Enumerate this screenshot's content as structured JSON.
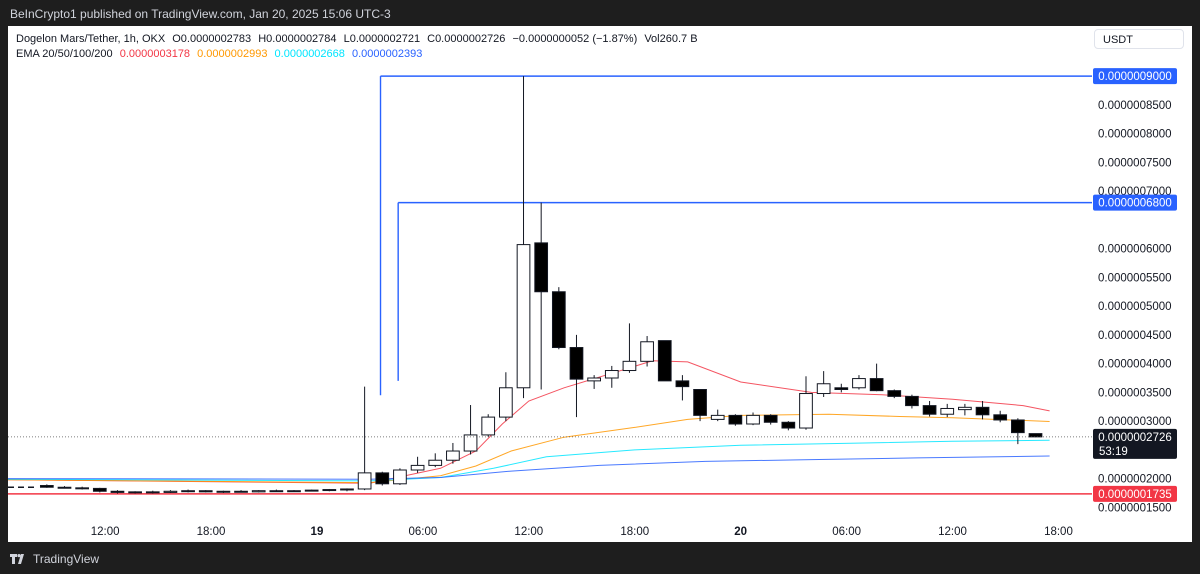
{
  "header": {
    "publisher_text": "BeInCrypto1 published on TradingView.com, Jan 20, 2025 15:06 UTC-3"
  },
  "legend": {
    "symbol": "Dogelon Mars/Tether, 1h, OKX",
    "open": "O0.0000002783",
    "high": "H0.0000002784",
    "low": "L0.0000002721",
    "close": "C0.0000002726",
    "change": "−0.0000000052 (−1.87%)",
    "volume": "Vol260.7 B",
    "ema_label": "EMA 20/50/100/200",
    "ema20": "0.0000003178",
    "ema50": "0.0000002993",
    "ema100": "0.0000002668",
    "ema200": "0.0000002393"
  },
  "currency_button": "USDT",
  "footer": {
    "brand": "TradingView"
  },
  "colors": {
    "ema20": "#f23645",
    "ema50": "#ff9800",
    "ema100": "#00e5ff",
    "ema200": "#2962ff",
    "resistance": "#2962ff",
    "support": "#f23645",
    "candle_down": "#000000",
    "candle_up": "#ffffff"
  },
  "chart_data": {
    "type": "candlestick",
    "y_axis_ticks": [
      "0.0000008500",
      "0.0000008000",
      "0.0000007500",
      "0.0000007000",
      "0.0000006000",
      "0.0000005500",
      "0.0000005000",
      "0.0000004500",
      "0.0000004000",
      "0.0000003500",
      "0.0000003000",
      "0.0000002000",
      "0.0000001500"
    ],
    "y_tick_values": [
      8.5e-07,
      8e-07,
      7.5e-07,
      7e-07,
      6e-07,
      5.5e-07,
      5e-07,
      4.5e-07,
      4e-07,
      3.5e-07,
      3e-07,
      2e-07,
      1.5e-07
    ],
    "x_axis_ticks": [
      {
        "label": "12:00",
        "hour": 12
      },
      {
        "label": "18:00",
        "hour": 18
      },
      {
        "label": "19",
        "hour": 24
      },
      {
        "label": "06:00",
        "hour": 30
      },
      {
        "label": "12:00",
        "hour": 36
      },
      {
        "label": "18:00",
        "hour": 42
      },
      {
        "label": "20",
        "hour": 48
      },
      {
        "label": "06:00",
        "hour": 54
      },
      {
        "label": "12:00",
        "hour": 60
      },
      {
        "label": "18:00",
        "hour": 66
      }
    ],
    "ylim": [
      1.35e-07,
      9.35e-07
    ],
    "xlim": [
      6.5,
      67.9
    ],
    "horizontal_levels": [
      {
        "label": "0.0000009000",
        "value": 9e-07,
        "color": "#2962ff",
        "start_hour": 27.6
      },
      {
        "label": "0.0000006800",
        "value": 6.8e-07,
        "color": "#2962ff",
        "start_hour": 28.6
      },
      {
        "label": "0.0000001735",
        "value": 1.735e-07,
        "color": "#f23645",
        "start_hour": 6.5
      }
    ],
    "last_price": {
      "label": "0.0000002726",
      "countdown": "53:19",
      "value": 2.726e-07
    },
    "candles": [
      {
        "t": 8.7,
        "o": 1.88e-07,
        "h": 1.9e-07,
        "l": 1.84e-07,
        "c": 1.85e-07
      },
      {
        "t": 9.7,
        "o": 1.85e-07,
        "h": 1.87e-07,
        "l": 1.83e-07,
        "c": 1.84e-07
      },
      {
        "t": 10.7,
        "o": 1.84e-07,
        "h": 1.86e-07,
        "l": 1.81e-07,
        "c": 1.83e-07
      },
      {
        "t": 11.7,
        "o": 1.83e-07,
        "h": 1.84e-07,
        "l": 1.76e-07,
        "c": 1.78e-07
      },
      {
        "t": 12.7,
        "o": 1.78e-07,
        "h": 1.8e-07,
        "l": 1.74e-07,
        "c": 1.76e-07
      },
      {
        "t": 13.7,
        "o": 1.76e-07,
        "h": 1.78e-07,
        "l": 1.74e-07,
        "c": 1.77e-07
      },
      {
        "t": 14.7,
        "o": 1.77e-07,
        "h": 1.79e-07,
        "l": 1.74e-07,
        "c": 1.76e-07
      },
      {
        "t": 15.7,
        "o": 1.76e-07,
        "h": 1.8e-07,
        "l": 1.75e-07,
        "c": 1.78e-07
      },
      {
        "t": 16.7,
        "o": 1.78e-07,
        "h": 1.81e-07,
        "l": 1.76e-07,
        "c": 1.79e-07
      },
      {
        "t": 17.7,
        "o": 1.79e-07,
        "h": 1.8e-07,
        "l": 1.76e-07,
        "c": 1.77e-07
      },
      {
        "t": 18.7,
        "o": 1.77e-07,
        "h": 1.79e-07,
        "l": 1.75e-07,
        "c": 1.78e-07
      },
      {
        "t": 19.7,
        "o": 1.78e-07,
        "h": 1.8e-07,
        "l": 1.76e-07,
        "c": 1.77e-07
      },
      {
        "t": 20.7,
        "o": 1.77e-07,
        "h": 1.8e-07,
        "l": 1.76e-07,
        "c": 1.79e-07
      },
      {
        "t": 21.7,
        "o": 1.79e-07,
        "h": 1.81e-07,
        "l": 1.77e-07,
        "c": 1.78e-07
      },
      {
        "t": 22.7,
        "o": 1.78e-07,
        "h": 1.8e-07,
        "l": 1.77e-07,
        "c": 1.79e-07
      },
      {
        "t": 23.7,
        "o": 1.79e-07,
        "h": 1.81e-07,
        "l": 1.78e-07,
        "c": 1.8e-07
      },
      {
        "t": 24.7,
        "o": 1.8e-07,
        "h": 1.82e-07,
        "l": 1.78e-07,
        "c": 1.81e-07
      },
      {
        "t": 25.7,
        "o": 1.81e-07,
        "h": 1.83e-07,
        "l": 1.78e-07,
        "c": 1.82e-07
      },
      {
        "t": 26.7,
        "o": 1.82e-07,
        "h": 3.6e-07,
        "l": 1.8e-07,
        "c": 2.1e-07
      },
      {
        "t": 27.7,
        "o": 2.1e-07,
        "h": 2.12e-07,
        "l": 1.88e-07,
        "c": 1.91e-07
      },
      {
        "t": 28.7,
        "o": 1.91e-07,
        "h": 2.18e-07,
        "l": 1.89e-07,
        "c": 2.15e-07
      },
      {
        "t": 29.7,
        "o": 2.15e-07,
        "h": 2.38e-07,
        "l": 2.1e-07,
        "c": 2.23e-07
      },
      {
        "t": 30.7,
        "o": 2.23e-07,
        "h": 2.44e-07,
        "l": 2.2e-07,
        "c": 2.32e-07
      },
      {
        "t": 31.7,
        "o": 2.32e-07,
        "h": 2.62e-07,
        "l": 2.26e-07,
        "c": 2.48e-07
      },
      {
        "t": 32.7,
        "o": 2.48e-07,
        "h": 3.28e-07,
        "l": 2.42e-07,
        "c": 2.76e-07
      },
      {
        "t": 33.7,
        "o": 2.76e-07,
        "h": 3.12e-07,
        "l": 2.73e-07,
        "c": 3.07e-07
      },
      {
        "t": 34.7,
        "o": 3.07e-07,
        "h": 3.85e-07,
        "l": 3e-07,
        "c": 3.58e-07
      },
      {
        "t": 35.7,
        "o": 3.58e-07,
        "h": 9e-07,
        "l": 3.4e-07,
        "c": 6.07e-07
      },
      {
        "t": 36.7,
        "o": 6.1e-07,
        "h": 6.8e-07,
        "l": 3.55e-07,
        "c": 5.25e-07
      },
      {
        "t": 37.7,
        "o": 5.25e-07,
        "h": 5.33e-07,
        "l": 4.25e-07,
        "c": 4.28e-07
      },
      {
        "t": 38.7,
        "o": 4.28e-07,
        "h": 4.5e-07,
        "l": 3.07e-07,
        "c": 3.73e-07
      },
      {
        "t": 39.7,
        "o": 3.7e-07,
        "h": 3.8e-07,
        "l": 3.56e-07,
        "c": 3.75e-07
      },
      {
        "t": 40.7,
        "o": 3.75e-07,
        "h": 3.96e-07,
        "l": 3.58e-07,
        "c": 3.88e-07
      },
      {
        "t": 41.7,
        "o": 3.88e-07,
        "h": 4.7e-07,
        "l": 3.84e-07,
        "c": 4.04e-07
      },
      {
        "t": 42.7,
        "o": 4.04e-07,
        "h": 4.48e-07,
        "l": 3.95e-07,
        "c": 4.38e-07
      },
      {
        "t": 43.7,
        "o": 4.4e-07,
        "h": 4.4e-07,
        "l": 3.7e-07,
        "c": 3.7e-07
      },
      {
        "t": 44.7,
        "o": 3.7e-07,
        "h": 3.8e-07,
        "l": 3.36e-07,
        "c": 3.6e-07
      },
      {
        "t": 45.7,
        "o": 3.55e-07,
        "h": 3.55e-07,
        "l": 3e-07,
        "c": 3.1e-07
      },
      {
        "t": 46.7,
        "o": 3.03e-07,
        "h": 3.2e-07,
        "l": 3e-07,
        "c": 3.1e-07
      },
      {
        "t": 47.7,
        "o": 3.1e-07,
        "h": 3.12e-07,
        "l": 2.92e-07,
        "c": 2.95e-07
      },
      {
        "t": 48.7,
        "o": 2.95e-07,
        "h": 3.15e-07,
        "l": 2.93e-07,
        "c": 3.1e-07
      },
      {
        "t": 49.7,
        "o": 3.1e-07,
        "h": 3.12e-07,
        "l": 2.94e-07,
        "c": 2.98e-07
      },
      {
        "t": 50.7,
        "o": 2.98e-07,
        "h": 3e-07,
        "l": 2.84e-07,
        "c": 2.88e-07
      },
      {
        "t": 51.7,
        "o": 2.88e-07,
        "h": 3.78e-07,
        "l": 2.85e-07,
        "c": 3.48e-07
      },
      {
        "t": 52.7,
        "o": 3.48e-07,
        "h": 3.87e-07,
        "l": 3.42e-07,
        "c": 3.65e-07
      },
      {
        "t": 53.7,
        "o": 3.58e-07,
        "h": 3.65e-07,
        "l": 3.5e-07,
        "c": 3.55e-07
      },
      {
        "t": 54.7,
        "o": 3.58e-07,
        "h": 3.8e-07,
        "l": 3.55e-07,
        "c": 3.74e-07
      },
      {
        "t": 55.7,
        "o": 3.74e-07,
        "h": 4e-07,
        "l": 3.52e-07,
        "c": 3.53e-07
      },
      {
        "t": 56.7,
        "o": 3.53e-07,
        "h": 3.55e-07,
        "l": 3.4e-07,
        "c": 3.43e-07
      },
      {
        "t": 57.7,
        "o": 3.43e-07,
        "h": 3.46e-07,
        "l": 3.22e-07,
        "c": 3.27e-07
      },
      {
        "t": 58.7,
        "o": 3.27e-07,
        "h": 3.35e-07,
        "l": 3.08e-07,
        "c": 3.12e-07
      },
      {
        "t": 59.7,
        "o": 3.12e-07,
        "h": 3.3e-07,
        "l": 3.07e-07,
        "c": 3.22e-07
      },
      {
        "t": 60.7,
        "o": 3.2e-07,
        "h": 3.3e-07,
        "l": 3.1e-07,
        "c": 3.24e-07
      },
      {
        "t": 61.7,
        "o": 3.24e-07,
        "h": 3.35e-07,
        "l": 3.03e-07,
        "c": 3.11e-07
      },
      {
        "t": 62.7,
        "o": 3.11e-07,
        "h": 3.18e-07,
        "l": 2.98e-07,
        "c": 3.02e-07
      },
      {
        "t": 63.7,
        "o": 3.02e-07,
        "h": 3.05e-07,
        "l": 2.6e-07,
        "c": 2.8e-07
      },
      {
        "t": 64.7,
        "o": 2.783e-07,
        "h": 2.784e-07,
        "l": 2.721e-07,
        "c": 2.726e-07
      }
    ],
    "ema20": [
      [
        6.5,
        1.98e-07
      ],
      [
        27,
        1.92e-07
      ],
      [
        31,
        2.18e-07
      ],
      [
        33,
        2.48e-07
      ],
      [
        34.5,
        2.95e-07
      ],
      [
        36,
        3.35e-07
      ],
      [
        38,
        3.58e-07
      ],
      [
        41,
        3.86e-07
      ],
      [
        43,
        4.05e-07
      ],
      [
        45,
        4.03e-07
      ],
      [
        48,
        3.68e-07
      ],
      [
        52,
        3.5e-07
      ],
      [
        56,
        3.46e-07
      ],
      [
        60,
        3.38e-07
      ],
      [
        64,
        3.27e-07
      ],
      [
        65.5,
        3.178e-07
      ]
    ],
    "ema50": [
      [
        6.5,
        1.98e-07
      ],
      [
        27,
        1.93e-07
      ],
      [
        31,
        2.05e-07
      ],
      [
        33,
        2.22e-07
      ],
      [
        35,
        2.48e-07
      ],
      [
        38,
        2.72e-07
      ],
      [
        42,
        2.89e-07
      ],
      [
        45,
        3.03e-07
      ],
      [
        48,
        3.1e-07
      ],
      [
        53,
        3.12e-07
      ],
      [
        57,
        3.08e-07
      ],
      [
        60,
        3.06e-07
      ],
      [
        65.5,
        2.993e-07
      ]
    ],
    "ema100": [
      [
        6.5,
        1.99e-07
      ],
      [
        27,
        1.96e-07
      ],
      [
        31,
        2.02e-07
      ],
      [
        34,
        2.18e-07
      ],
      [
        37,
        2.38e-07
      ],
      [
        42,
        2.5e-07
      ],
      [
        48,
        2.58e-07
      ],
      [
        55,
        2.62e-07
      ],
      [
        60,
        2.65e-07
      ],
      [
        65.5,
        2.668e-07
      ]
    ],
    "ema200": [
      [
        6.5,
        2e-07
      ],
      [
        27,
        1.99e-07
      ],
      [
        31,
        2.02e-07
      ],
      [
        35,
        2.13e-07
      ],
      [
        40,
        2.23e-07
      ],
      [
        46,
        2.3e-07
      ],
      [
        52,
        2.33e-07
      ],
      [
        58,
        2.36e-07
      ],
      [
        65.5,
        2.393e-07
      ]
    ],
    "ema_labels": [
      "EMA 20",
      "EMA 50",
      "EMA 100",
      "EMA 200"
    ]
  }
}
